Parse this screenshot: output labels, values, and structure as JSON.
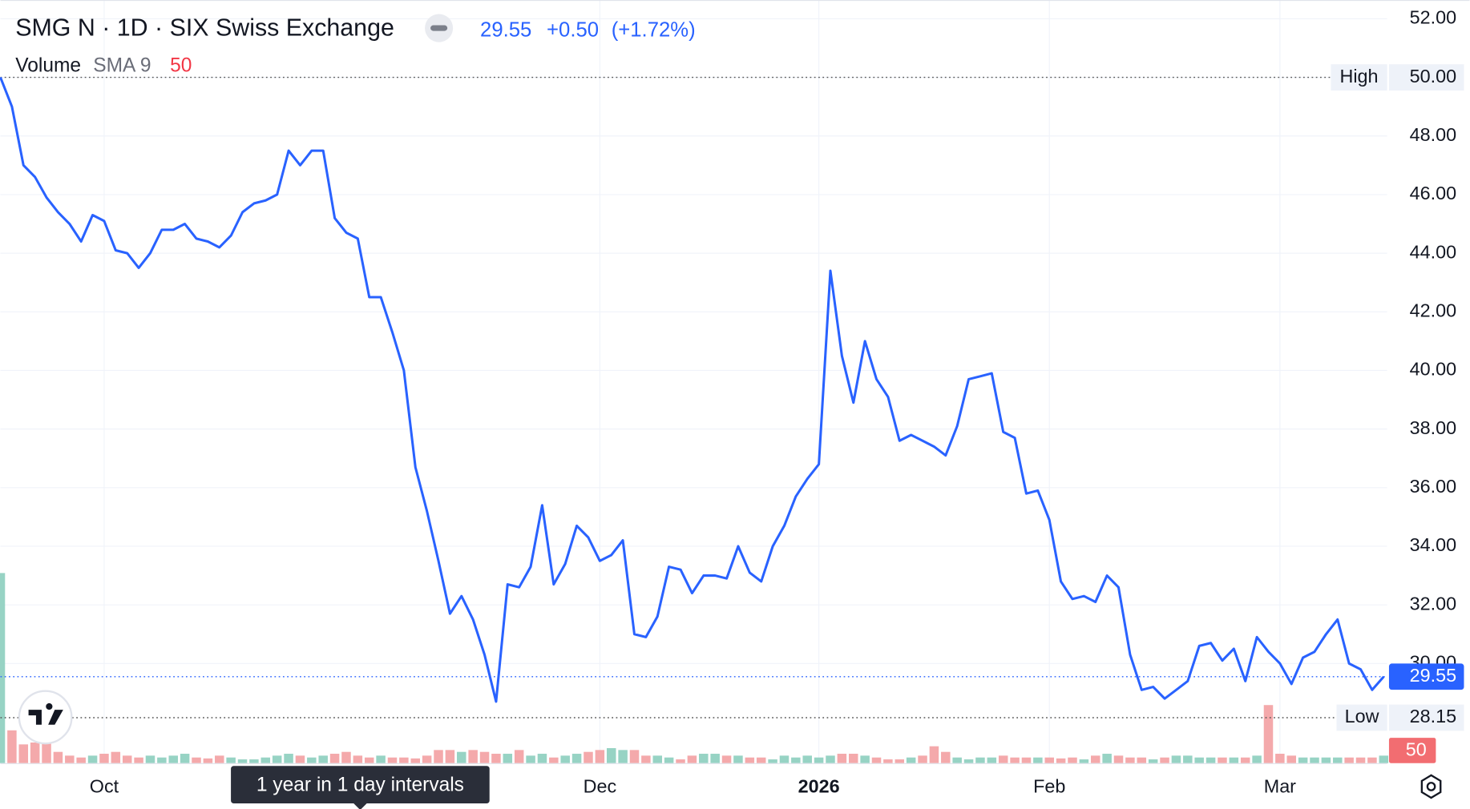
{
  "chart_data": {
    "type": "line",
    "title": "SMG N · 1D · SIX Swiss Exchange",
    "quote": {
      "last": "29.55",
      "change": "+0.50",
      "change_pct": "(+1.72%)"
    },
    "volume_label": "Volume",
    "sma_label": "SMA 9",
    "sma_value": "50",
    "color": "#2962ff",
    "values": [
      50.0,
      49.0,
      47.0,
      46.6,
      45.9,
      45.4,
      45.0,
      44.4,
      45.3,
      45.1,
      44.1,
      44.0,
      43.5,
      44.0,
      44.8,
      44.8,
      45.0,
      44.5,
      44.4,
      44.2,
      44.6,
      45.4,
      45.7,
      45.8,
      46.0,
      47.5,
      47.0,
      47.5,
      47.5,
      45.2,
      44.7,
      44.5,
      42.5,
      42.5,
      41.3,
      40.0,
      36.7,
      35.2,
      33.5,
      31.7,
      32.3,
      31.5,
      30.3,
      28.7,
      32.7,
      32.6,
      33.3,
      35.4,
      32.7,
      33.4,
      34.7,
      34.3,
      33.5,
      33.7,
      34.2,
      31.0,
      30.9,
      31.6,
      33.3,
      33.2,
      32.4,
      33.0,
      33.0,
      32.9,
      34.0,
      33.1,
      32.8,
      34.0,
      34.7,
      35.7,
      36.3,
      36.8,
      43.4,
      40.5,
      38.9,
      41.0,
      39.7,
      39.1,
      37.6,
      37.8,
      37.6,
      37.4,
      37.1,
      38.1,
      39.7,
      39.8,
      39.9,
      37.9,
      37.7,
      35.8,
      35.9,
      34.9,
      32.8,
      32.2,
      32.3,
      32.1,
      33.0,
      32.6,
      30.3,
      29.1,
      29.2,
      28.8,
      29.1,
      29.4,
      30.6,
      30.7,
      30.1,
      30.5,
      29.4,
      30.9,
      30.4,
      30.0,
      29.3,
      30.2,
      30.4,
      31.0,
      31.5,
      30.0,
      29.8,
      29.1,
      29.55
    ],
    "volume": {
      "up_color": "#97d3c4",
      "down_color": "#f4a9ab",
      "values": [
        203,
        35,
        20,
        22,
        24,
        12,
        8,
        6,
        8,
        10,
        12,
        8,
        6,
        8,
        6,
        8,
        10,
        6,
        5,
        8,
        6,
        4,
        4,
        6,
        8,
        10,
        8,
        6,
        8,
        10,
        12,
        8,
        6,
        8,
        6,
        6,
        5,
        8,
        14,
        14,
        12,
        14,
        12,
        10,
        10,
        14,
        8,
        10,
        6,
        8,
        10,
        12,
        14,
        16,
        14,
        14,
        8,
        8,
        6,
        4,
        8,
        10,
        10,
        8,
        8,
        6,
        6,
        4,
        8,
        6,
        8,
        6,
        8,
        10,
        10,
        8,
        6,
        4,
        4,
        6,
        8,
        18,
        12,
        6,
        4,
        6,
        6,
        8,
        6,
        6,
        6,
        6,
        5,
        6,
        4,
        8,
        10,
        8,
        6,
        6,
        4,
        6,
        8,
        8,
        6,
        6,
        6,
        6,
        6,
        8,
        62,
        10,
        8,
        6,
        6,
        6,
        6,
        6,
        6,
        6,
        8
      ]
    },
    "high": {
      "label": "High",
      "value": 50,
      "value_label": "50.00"
    },
    "low": {
      "label": "Low",
      "value": 28.15,
      "value_label": "28.15"
    },
    "volume_tag": "50",
    "xlim": [
      0,
      120.3
    ],
    "xticks": [
      {
        "value": 9,
        "label": "Oct"
      },
      {
        "value": 52,
        "label": "Dec"
      },
      {
        "value": 71,
        "label": "2026"
      },
      {
        "value": 91,
        "label": "Feb"
      },
      {
        "value": 111,
        "label": "Mar"
      }
    ],
    "ylim": [
      26.6,
      52.64
    ],
    "yticks": [
      {
        "value": 30,
        "label": "30.00"
      },
      {
        "value": 32,
        "label": "32.00"
      },
      {
        "value": 34,
        "label": "34.00"
      },
      {
        "value": 36,
        "label": "36.00"
      },
      {
        "value": 38,
        "label": "38.00"
      },
      {
        "value": 40,
        "label": "40.00"
      },
      {
        "value": 42,
        "label": "42.00"
      },
      {
        "value": 44,
        "label": "44.00"
      },
      {
        "value": 46,
        "label": "46.00"
      },
      {
        "value": 48,
        "label": "48.00"
      },
      {
        "value": 50,
        "label": "50.00"
      },
      {
        "value": 52,
        "label": "52.00"
      }
    ],
    "grid": true,
    "footer_note": "1 year in 1 day intervals"
  }
}
